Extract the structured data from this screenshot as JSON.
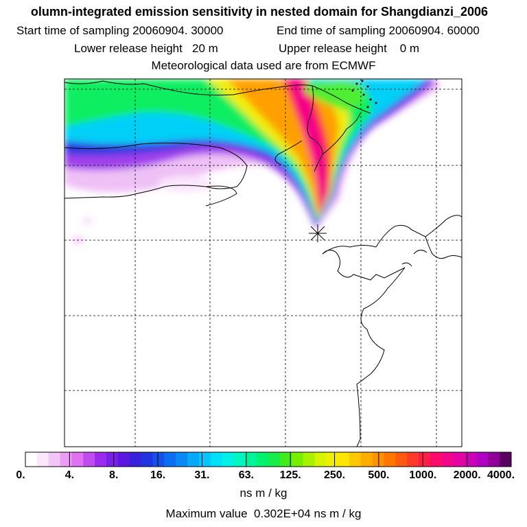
{
  "header": {
    "title": "olumn-integrated emission sensitivity in nested domain for Shangdianzi_2006",
    "start_label": "Start time of sampling",
    "start_value": "20060904. 30000",
    "end_label": "End time of sampling",
    "end_value": "20060904. 60000",
    "lower_label": "Lower release height",
    "lower_value": "20 m",
    "upper_label": "Upper release height",
    "upper_value": "0 m",
    "meteo": "Meteorological data used are from ECMWF"
  },
  "colorbar": {
    "labels": [
      "0.",
      "4.",
      "8.",
      "16.",
      "31.",
      "63.",
      "125.",
      "250.",
      "500.",
      "1000.",
      "2000.",
      "4000."
    ],
    "colors": [
      "#ffffff",
      "#fbe6fb",
      "#f3c6f8",
      "#ec9cf6",
      "#df72f3",
      "#c04cef",
      "#9a2bec",
      "#7a1fe7",
      "#5a18e0",
      "#3a22dc",
      "#2034e0",
      "#1650ea",
      "#0c6ef2",
      "#0a8af6",
      "#08a8fa",
      "#06c4fc",
      "#00e0f8",
      "#00f0e8",
      "#00f5c0",
      "#00f59a",
      "#00f070",
      "#18ec48",
      "#40ec1c",
      "#78ee00",
      "#a8f200",
      "#d4f400",
      "#eef000",
      "#ffe600",
      "#ffc800",
      "#ffae00",
      "#ff9200",
      "#ff7600",
      "#ff5a10",
      "#ff3a2a",
      "#ff1e48",
      "#ff0c6a",
      "#f4068a",
      "#e404a2",
      "#cc02b6",
      "#b000c2",
      "#900098",
      "#5a0060"
    ],
    "unit": "ns m / kg"
  },
  "footer": {
    "max_label": "Maximum value",
    "max_value": "0.302E+04 ns m / kg"
  },
  "map": {
    "receptor_marker": "star",
    "grid": "dashed lat/lon lines"
  }
}
